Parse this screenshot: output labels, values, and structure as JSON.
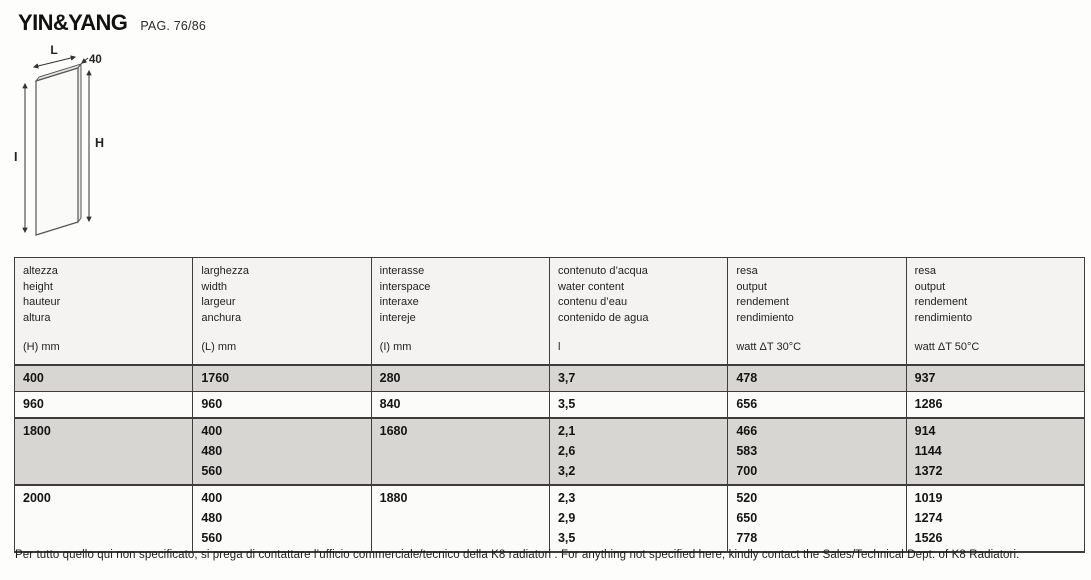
{
  "header": {
    "title": "YIN&YANG",
    "page_ref": "PAG. 76/86"
  },
  "diagram": {
    "labels": {
      "length": "L",
      "depth": "40",
      "height": "H",
      "interaxis": "I"
    }
  },
  "table": {
    "columns": [
      {
        "names": [
          "altezza",
          "height",
          "hauteur",
          "altura"
        ],
        "unit": "(H) mm"
      },
      {
        "names": [
          "larghezza",
          "width",
          "largeur",
          "anchura"
        ],
        "unit": "(L) mm"
      },
      {
        "names": [
          "interasse",
          "interspace",
          "interaxe",
          "intereje"
        ],
        "unit": "(I) mm"
      },
      {
        "names": [
          "contenuto d’acqua",
          "water content",
          "contenu d’eau",
          "contenido de agua"
        ],
        "unit": "l"
      },
      {
        "names": [
          "resa",
          "output",
          "rendement",
          "rendimiento"
        ],
        "unit": "watt ΔT 30°C"
      },
      {
        "names": [
          "resa",
          "output",
          "rendement",
          "rendimiento"
        ],
        "unit": "watt ΔT 50°C"
      }
    ],
    "rows": [
      {
        "shaded": true,
        "group_start": true,
        "cells": [
          [
            "400"
          ],
          [
            "1760"
          ],
          [
            "280"
          ],
          [
            "3,7"
          ],
          [
            "478"
          ],
          [
            "937"
          ]
        ]
      },
      {
        "shaded": false,
        "group_start": false,
        "cells": [
          [
            "960"
          ],
          [
            "960"
          ],
          [
            "840"
          ],
          [
            "3,5"
          ],
          [
            "656"
          ],
          [
            "1286"
          ]
        ]
      },
      {
        "shaded": true,
        "group_start": true,
        "cells": [
          [
            "1800"
          ],
          [
            "400",
            "480",
            "560"
          ],
          [
            "1680"
          ],
          [
            "2,1",
            "2,6",
            "3,2"
          ],
          [
            "466",
            "583",
            "700"
          ],
          [
            "914",
            "1144",
            "1372"
          ]
        ]
      },
      {
        "shaded": false,
        "group_start": true,
        "cells": [
          [
            "2000"
          ],
          [
            "400",
            "480",
            "560"
          ],
          [
            "1880"
          ],
          [
            "2,3",
            "2,9",
            "3,5"
          ],
          [
            "520",
            "650",
            "778"
          ],
          [
            "1019",
            "1274",
            "1526"
          ]
        ]
      }
    ]
  },
  "footer": {
    "note": "Per tutto quello qui non specificato, si prega di contattare l’ufficio commerciale/tecnico della K8 radiatori . For anything not specified here, kindly contact the Sales/Technical Dept. of K8 Radiatori."
  },
  "colors": {
    "row_shaded": "#d7d6d3",
    "row_plain": "#fbfbf9",
    "header_bg": "#f4f3f1",
    "border": "#3d3d3d",
    "text": "#1a1a1a"
  }
}
